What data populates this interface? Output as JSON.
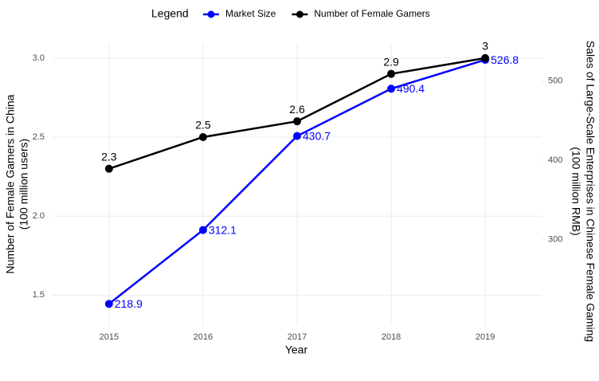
{
  "chart_data": {
    "type": "line",
    "legend_title": "Legend",
    "x_label": "Year",
    "y_label": [
      "Number of Female Gamers in China",
      "(100 million users)"
    ],
    "y2_label": [
      "Sales of Large-Scale Enterprises in Chinese Female Gaming",
      "(100 million RMB)"
    ],
    "x": [
      2015,
      2016,
      2017,
      2018,
      2019
    ],
    "xlim": [
      2014.4,
      2019.6
    ],
    "xticks": [
      2015,
      2016,
      2017,
      2018,
      2019
    ],
    "ylim": [
      1.31,
      3.09
    ],
    "yticks": [
      1.5,
      {
        "value": 2,
        "label": "2.0"
      },
      2.5,
      {
        "value": 3,
        "label": "3.0"
      }
    ],
    "y2lim": [
      192,
      547
    ],
    "y2ticks": [
      300,
      400,
      500
    ],
    "grid": true,
    "legend_position": "top",
    "series": [
      {
        "name": "Market Size",
        "color": "#0000ff",
        "axis": "y2",
        "values": [
          218.9,
          312.1,
          430.7,
          490.4,
          526.8
        ]
      },
      {
        "name": "Number of Female Gamers",
        "color": "#000000",
        "axis": "y",
        "values": [
          2.3,
          2.5,
          2.6,
          2.9,
          3
        ]
      }
    ]
  }
}
